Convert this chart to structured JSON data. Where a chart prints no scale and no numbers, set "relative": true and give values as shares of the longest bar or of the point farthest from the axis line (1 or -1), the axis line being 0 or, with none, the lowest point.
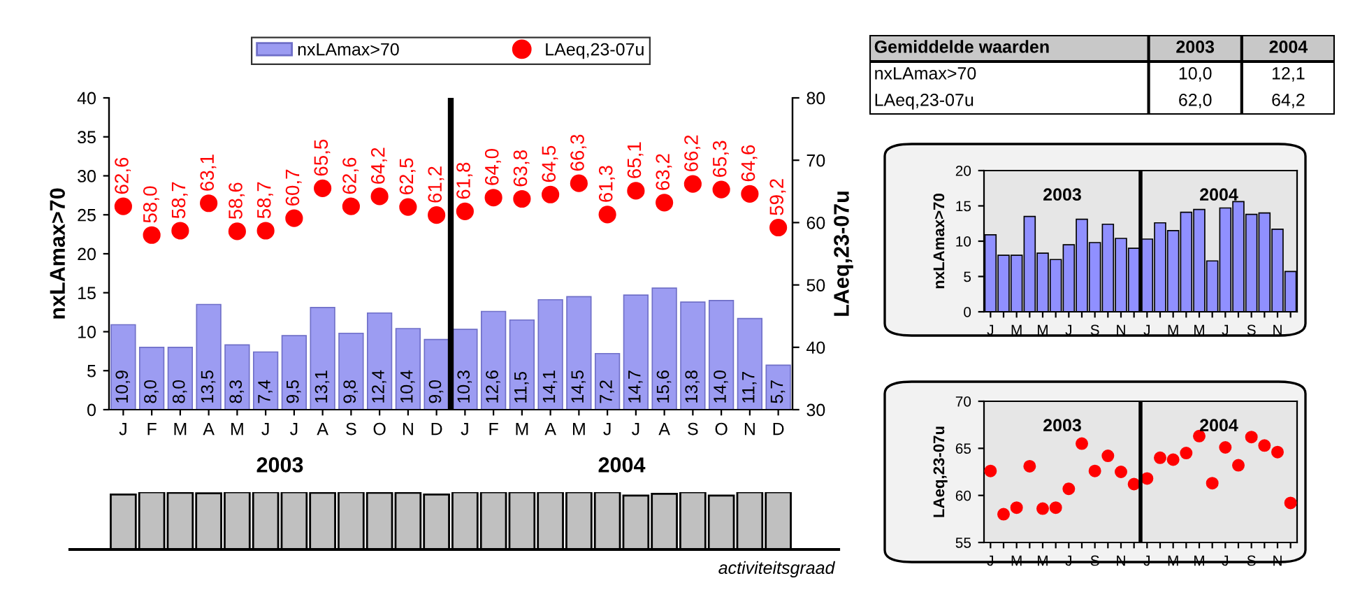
{
  "chart_data": [
    {
      "type": "bar",
      "categories": [
        "J",
        "F",
        "M",
        "A",
        "M",
        "J",
        "J",
        "A",
        "S",
        "O",
        "N",
        "D",
        "J",
        "F",
        "M",
        "A",
        "M",
        "J",
        "J",
        "A",
        "S",
        "O",
        "N",
        "D"
      ],
      "series": [
        {
          "name": "nxLAmax>70",
          "type": "bar",
          "color": "#9c9cf2",
          "values": [
            10.9,
            8.0,
            8.0,
            13.5,
            8.3,
            7.4,
            9.5,
            13.1,
            9.8,
            12.4,
            10.4,
            9.0,
            10.3,
            12.6,
            11.5,
            14.1,
            14.5,
            7.2,
            14.7,
            15.6,
            13.8,
            14.0,
            11.7,
            5.7
          ],
          "value_labels": [
            "10,9",
            "8,0",
            "8,0",
            "13,5",
            "8,3",
            "7,4",
            "9,5",
            "13,1",
            "9,8",
            "12,4",
            "10,4",
            "9,0",
            "10,3",
            "12,6",
            "11,5",
            "14,1",
            "14,5",
            "7,2",
            "14,7",
            "15,6",
            "13,8",
            "14,0",
            "11,7",
            "5,7"
          ]
        },
        {
          "name": "LAeq,23-07u",
          "type": "scatter",
          "axis": "y2",
          "color": "#ff0000",
          "values": [
            62.6,
            58.0,
            58.7,
            63.1,
            58.6,
            58.7,
            60.7,
            65.5,
            62.6,
            64.2,
            62.5,
            61.2,
            61.8,
            64.0,
            63.8,
            64.5,
            66.3,
            61.3,
            65.1,
            63.2,
            66.2,
            65.3,
            64.6,
            59.2
          ],
          "value_labels": [
            "62,6",
            "58,0",
            "58,7",
            "63,1",
            "58,6",
            "58,7",
            "60,7",
            "65,5",
            "62,6",
            "64,2",
            "62,5",
            "61,2",
            "61,8",
            "64,0",
            "63,8",
            "64,5",
            "66,3",
            "61,3",
            "65,1",
            "63,2",
            "66,2",
            "65,3",
            "64,6",
            "59,2"
          ]
        }
      ],
      "marker": "circle",
      "ylabel": "nxLAmax>70",
      "y2label": "LAeq,23-07u",
      "ylim": [
        0,
        40
      ],
      "yticks": [
        0,
        5,
        10,
        15,
        20,
        25,
        30,
        35,
        40
      ],
      "y2lim": [
        30,
        80
      ],
      "y2ticks": [
        30,
        40,
        50,
        60,
        70,
        80
      ],
      "legend": "top"
    },
    {
      "type": "bar",
      "relative": true,
      "categories": [
        null,
        null,
        null,
        null,
        null,
        null,
        null,
        null,
        null,
        null,
        null,
        null,
        null,
        null,
        null,
        null,
        null,
        null,
        null,
        null,
        null,
        null,
        null,
        null
      ],
      "color": "#c0c0c0",
      "values": [
        0.96,
        1,
        0.99,
        0.98,
        1,
        1,
        1,
        0.99,
        1,
        0.99,
        0.99,
        0.96,
        1,
        1,
        1,
        1,
        1,
        1,
        0.94,
        0.97,
        1,
        0.94,
        1,
        1
      ],
      "tick_labels": false,
      "annotations": [
        "2003",
        "2004",
        "activiteitsgraad"
      ]
    },
    {
      "type": "other",
      "title": "Gemiddelde waarden",
      "categories": [
        "2003",
        "2004"
      ],
      "y_categories": [
        "nxLAmax>70",
        "LAeq,23-07u"
      ],
      "cell_labels": [
        [
          "10,0",
          "12,1"
        ],
        [
          "62,0",
          "64,2"
        ]
      ]
    },
    {
      "type": "bar",
      "categories": [
        "J",
        null,
        "M",
        null,
        "M",
        null,
        "J",
        null,
        "S",
        null,
        "N",
        null,
        "J",
        null,
        "M",
        null,
        "M",
        null,
        "J",
        null,
        "S",
        null,
        "N",
        null
      ],
      "color": "#9090ff",
      "values": [
        10.9,
        8.0,
        8.0,
        13.5,
        8.3,
        7.4,
        9.5,
        13.1,
        9.8,
        12.4,
        10.4,
        9.0,
        10.3,
        12.6,
        11.5,
        14.1,
        14.5,
        7.2,
        14.7,
        15.6,
        13.8,
        14.0,
        11.7,
        5.7
      ],
      "ylabel": "nxLAmax>70",
      "ylim": [
        0,
        20
      ],
      "yticks": [
        0,
        5,
        10,
        15,
        20
      ],
      "annotations": [
        "2003",
        "2004"
      ]
    },
    {
      "type": "scatter",
      "categories": [
        "J",
        null,
        "M",
        null,
        "M",
        null,
        "J",
        null,
        "S",
        null,
        "N",
        null,
        "J",
        null,
        "M",
        null,
        "M",
        null,
        "J",
        null,
        "S",
        null,
        "N",
        null
      ],
      "color": "#ff0000",
      "marker": "circle",
      "values": [
        62.6,
        58.0,
        58.7,
        63.1,
        58.6,
        58.7,
        60.7,
        65.5,
        62.6,
        64.2,
        62.5,
        61.2,
        61.8,
        64.0,
        63.8,
        64.5,
        66.3,
        61.3,
        65.1,
        63.2,
        66.2,
        65.3,
        64.6,
        59.2
      ],
      "ylabel": "LAeq,23-07u",
      "ylim": [
        55,
        70
      ],
      "yticks": [
        55,
        60,
        65,
        70
      ],
      "annotations": [
        "2003",
        "2004"
      ]
    }
  ]
}
